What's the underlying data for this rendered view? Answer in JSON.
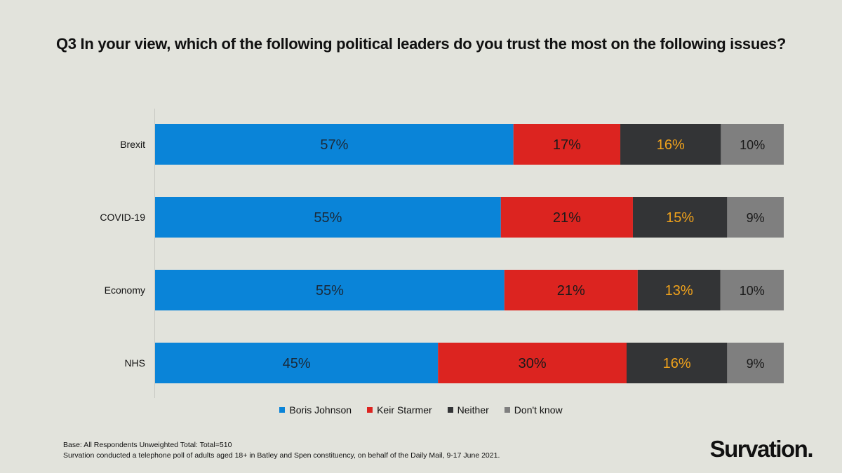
{
  "chart_data": {
    "type": "bar",
    "orientation": "horizontal",
    "stacked": true,
    "title": "Q3 In your view, which of the following political leaders do you trust the most on the following issues?",
    "categories": [
      "Brexit",
      "COVID-19",
      "Economy",
      "NHS"
    ],
    "series": [
      {
        "name": "Boris Johnson",
        "color": "#0a84d8",
        "label_color": "#1a2a3a",
        "values": [
          57,
          55,
          55,
          45
        ]
      },
      {
        "name": "Keir Starmer",
        "color": "#dc2420",
        "label_color": "#1a1a1a",
        "values": [
          17,
          21,
          21,
          30
        ]
      },
      {
        "name": "Neither",
        "color": "#333436",
        "label_color": "#f0a21c",
        "values": [
          16,
          15,
          13,
          16
        ]
      },
      {
        "name": "Don't know",
        "color": "#7f7f7f",
        "label_color": "#1a1a1a",
        "values": [
          10,
          9,
          10,
          9
        ]
      }
    ],
    "labels": [
      [
        "57%",
        "55%",
        "55%",
        "45%"
      ],
      [
        "17%",
        "21%",
        "21%",
        "30%"
      ],
      [
        "16%",
        "15%",
        "13%",
        "16%"
      ],
      [
        "10%",
        "9%",
        "10%",
        "9%"
      ]
    ],
    "legend_position": "bottom"
  },
  "footnote": {
    "line1": "Base: All Respondents Unweighted Total: Total=510",
    "line2": "Survation conducted  a telephone poll of adults aged 18+ in Batley and Spen constituency,  on behalf of the Daily Mail, 9-17 June 2021."
  },
  "logo": "Survation."
}
